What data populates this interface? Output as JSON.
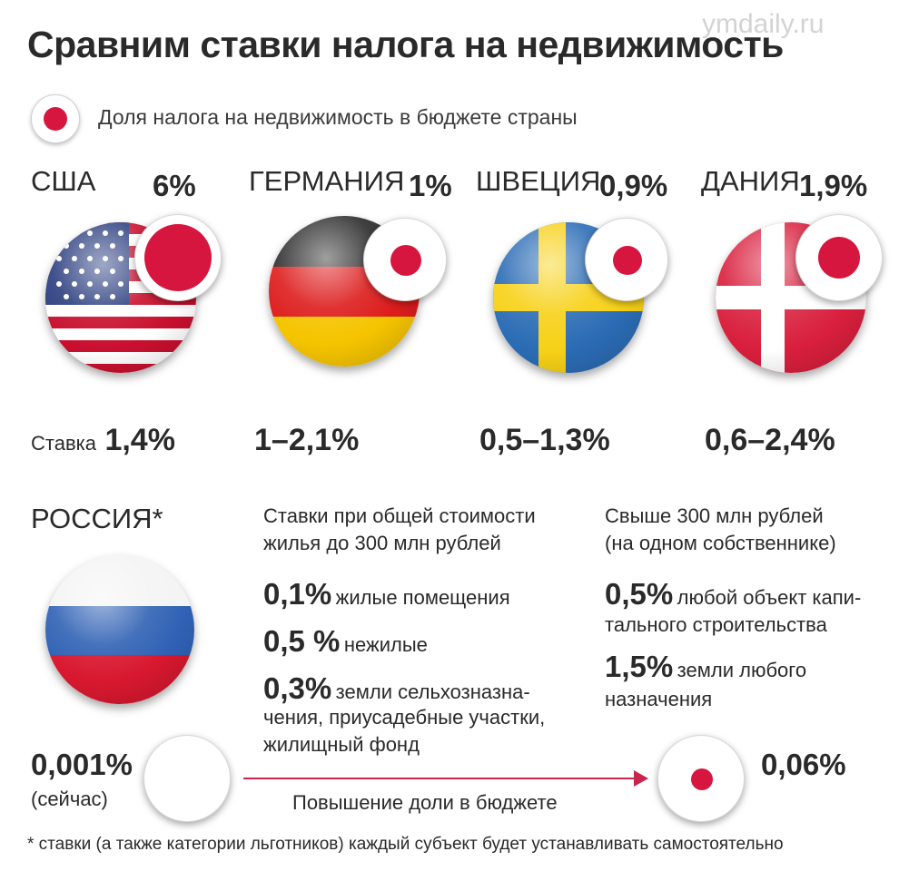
{
  "header": {
    "title": "Сравним ставки налога на недвижимость",
    "watermark": "ymdaily.ru"
  },
  "legend": {
    "label": "Доля налога на недвижимость в бюджете страны"
  },
  "countries": [
    {
      "name": "США",
      "share": "6%",
      "rate_prefix": "Ставка",
      "rate": "1,4%"
    },
    {
      "name": "ГЕРМАНИЯ",
      "share": "1%",
      "rate": "1–2,1%"
    },
    {
      "name": "ШВЕЦИЯ",
      "share": "0,9%",
      "rate": "0,5–1,3%"
    },
    {
      "name": "ДАНИЯ",
      "share": "1,9%",
      "rate": "0,6–2,4%"
    }
  ],
  "russia": {
    "name": "РОССИЯ*",
    "low": {
      "heading": [
        "Ставки при общей стоимости",
        "жилья до 300 млн рублей"
      ],
      "items": [
        {
          "value": "0,1%",
          "desc": [
            "жилые помещения"
          ]
        },
        {
          "value": "0,5 %",
          "desc": [
            "нежилые"
          ]
        },
        {
          "value": "0,3%",
          "desc": [
            "земли сельхозназна-",
            "чения, приусадебные участки,",
            "жилищный фонд"
          ]
        }
      ]
    },
    "high": {
      "heading": [
        "Свыше 300 млн рублей",
        "(на одном собственнике)"
      ],
      "items": [
        {
          "value": "0,5%",
          "desc": [
            "любой объект капи-",
            "тального строительства"
          ]
        },
        {
          "value": "1,5%",
          "desc": [
            "земли любого",
            "назначения"
          ]
        }
      ]
    },
    "current_share": "0,001%",
    "current_label": "(сейчас)",
    "future_share": "0,06%",
    "arrow_label": "Повышение доли в бюджете"
  },
  "footnote": "* ставки (а также категории льготников) каждый субъект будет устанавливать самостоятельно",
  "colors": {
    "accent_red": "#d6163f",
    "arrow": "#c9264d"
  }
}
